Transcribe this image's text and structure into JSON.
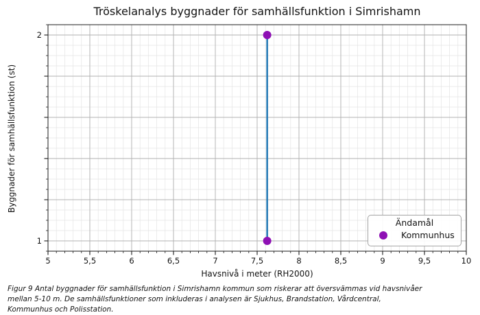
{
  "chart_data": {
    "type": "line",
    "title": "Tröskelanalys byggnader för samhällsfunktion i Simrishamn",
    "xlabel": "Havsnivå i meter (RH2000)",
    "ylabel": "Byggnader för samhällsfunktion (st)",
    "xlim": [
      5,
      10
    ],
    "ylim": [
      0.95,
      2.05
    ],
    "x_major_ticks": {
      "values": [
        5,
        5.5,
        6,
        6.5,
        7,
        7.5,
        8,
        8.5,
        9,
        9.5,
        10
      ],
      "labels": [
        "5",
        "5,5",
        "6",
        "6,5",
        "7",
        "7,5",
        "8",
        "8,5",
        "9",
        "9,5",
        "10"
      ]
    },
    "y_major_ticks": {
      "values": [
        1,
        1.2,
        1.4,
        1.6,
        1.8,
        2
      ],
      "labels": [
        "1",
        "",
        "",
        "",
        "",
        "2"
      ]
    },
    "x_minor_step": 0.1,
    "y_minor_step": 0.05,
    "grid": {
      "major": true,
      "minor": true
    },
    "series": [
      {
        "name": "Kommunhus",
        "points": [
          [
            7.62,
            1
          ],
          [
            7.62,
            2
          ]
        ],
        "line_color": "#1f77b4",
        "marker_color": "#8e10b4"
      }
    ],
    "legend": {
      "title": "Ändamål",
      "position": "lower-right",
      "entries": [
        {
          "label": "Kommunhus",
          "color": "#8e10b4"
        }
      ]
    }
  },
  "colors": {
    "grid_major": "#b0b0b0",
    "grid_minor": "#e4e4e4",
    "spine": "#1a1a1a",
    "tick": "#1a1a1a",
    "text": "#111111"
  },
  "caption_lines": [
    "Figur 9 Antal byggnader för samhällsfunktion i Simrishamn kommun som riskerar att översvämmas vid havsnivåer",
    "mellan 5-10 m. De samhällsfunktioner som inkluderas i analysen är Sjukhus, Brandstation, Vårdcentral,",
    "Kommunhus och Polisstation."
  ]
}
